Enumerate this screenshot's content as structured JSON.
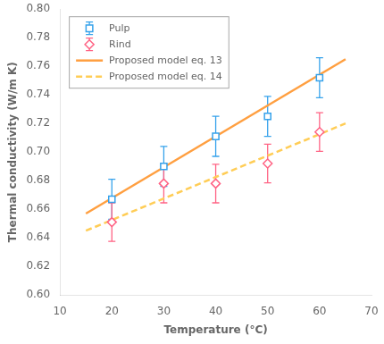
{
  "chart_data": {
    "type": "scatter",
    "xlabel": "Temperature (°C)",
    "ylabel": "Thermal conductivity (W/m K)",
    "series": [
      {
        "name": "Pulp",
        "type": "scatter",
        "marker": "square",
        "x": [
          20,
          30,
          40,
          50,
          60
        ],
        "values": [
          0.667,
          0.69,
          0.711,
          0.725,
          0.752
        ],
        "yerr": [
          0.014,
          0.014,
          0.014,
          0.014,
          0.014
        ]
      },
      {
        "name": "Rind",
        "type": "scatter",
        "marker": "diamond",
        "x": [
          20,
          30,
          40,
          50,
          60
        ],
        "values": [
          0.651,
          0.678,
          0.678,
          0.692,
          0.714
        ],
        "yerr": [
          0.0135,
          0.0135,
          0.0135,
          0.0135,
          0.0135
        ]
      },
      {
        "name": "Proposed model eq. 13",
        "type": "line",
        "line_style": "solid",
        "x": [
          15,
          65
        ],
        "values": [
          0.657,
          0.765
        ]
      },
      {
        "name": "Proposed model eq. 14",
        "type": "line",
        "line_style": "dashed",
        "x": [
          15,
          65
        ],
        "values": [
          0.645,
          0.72
        ]
      }
    ],
    "xlim": [
      10,
      70
    ],
    "ylim": [
      0.6,
      0.8
    ],
    "xticks": [
      10,
      20,
      30,
      40,
      50,
      60,
      70
    ],
    "yticks": [
      {
        "value": 0.6,
        "label": "0.60"
      },
      0.62,
      0.64,
      0.66,
      0.68,
      {
        "value": 0.7,
        "label": "0.70"
      },
      0.72,
      0.74,
      0.76,
      0.78,
      {
        "value": 0.8,
        "label": "0.80"
      }
    ],
    "grid": false,
    "legend": "upper left"
  }
}
